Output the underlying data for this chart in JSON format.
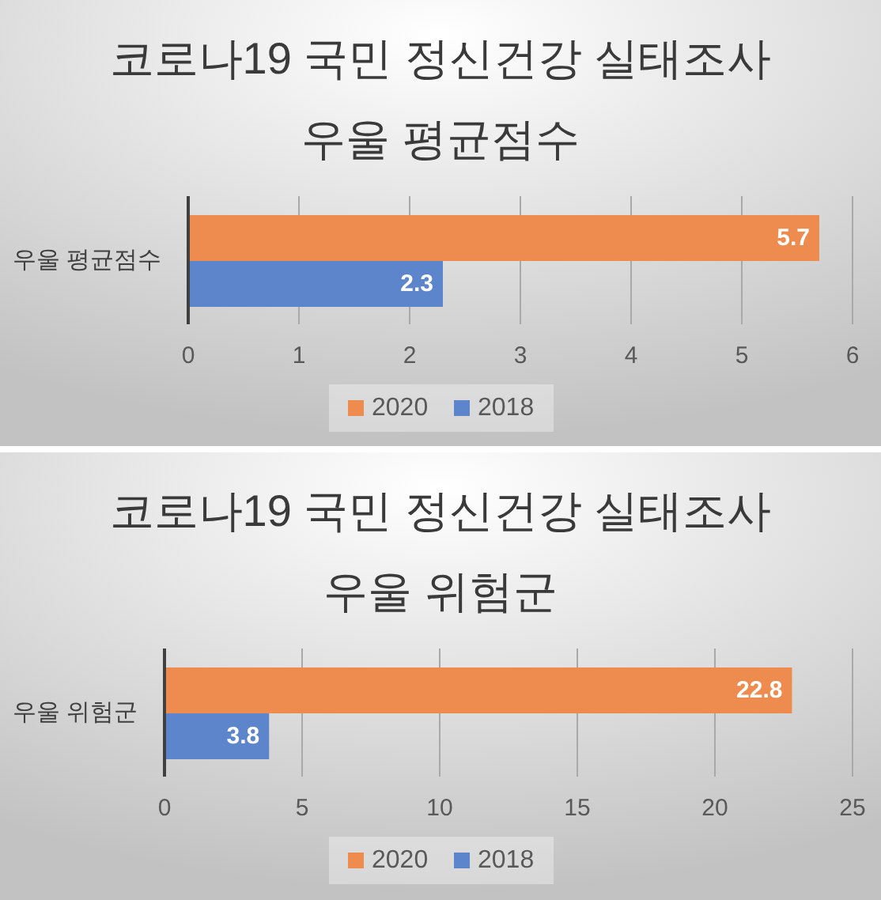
{
  "chart_data": [
    {
      "type": "bar",
      "orientation": "horizontal",
      "title": "코로나19 국민 정신건강 실태조사\n우울 평균점수",
      "categories": [
        "우울 평균점수"
      ],
      "series": [
        {
          "name": "2020",
          "color": "#ed8c4e",
          "values": [
            5.7
          ]
        },
        {
          "name": "2018",
          "color": "#5d85cb",
          "values": [
            2.3
          ]
        }
      ],
      "xlim": [
        0,
        6
      ],
      "xticks": [
        0,
        1,
        2,
        3,
        4,
        5,
        6
      ],
      "grid": "x",
      "legend": "bottom",
      "data_labels": true
    },
    {
      "type": "bar",
      "orientation": "horizontal",
      "title": "코로나19 국민 정신건강 실태조사\n우울 위험군",
      "categories": [
        "우울 위험군"
      ],
      "series": [
        {
          "name": "2020",
          "color": "#ed8c4e",
          "values": [
            22.8
          ]
        },
        {
          "name": "2018",
          "color": "#5d85cb",
          "values": [
            3.8
          ]
        }
      ],
      "xlim": [
        0,
        25
      ],
      "xticks": [
        0,
        5,
        10,
        15,
        20,
        25
      ],
      "grid": "x",
      "legend": "bottom",
      "data_labels": true
    }
  ]
}
